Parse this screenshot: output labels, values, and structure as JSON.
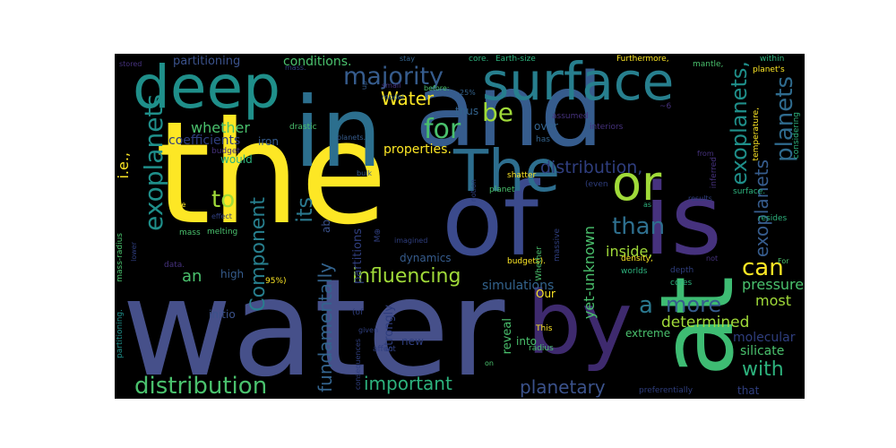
{
  "palette": {
    "background": "#000000",
    "yellow": "#fde725",
    "lime": "#a0da39",
    "green": "#4ac16d",
    "teal_green": "#1fa187",
    "teal": "#277f8e",
    "blue": "#365c8d",
    "indigo": "#46327e",
    "purple": "#440154"
  },
  "words": {
    "the": "the",
    "water": "water",
    "and": "and",
    "of": "of",
    "in": "in",
    "is": "is",
    "at": "at",
    "by": "by",
    "deep": "deep",
    "surface": "surface",
    "The": "The",
    "or": "or",
    "majority": "majority",
    "exoplanets": "exoplanets",
    "exoplanets_comma": "exoplanets,",
    "exoplanets_2": "exoplanets",
    "planets": "planets",
    "for": "for",
    "be": "be",
    "Water": "Water",
    "distribution": "distribution",
    "distribution_comma": "distribution,",
    "than": "than",
    "can": "can",
    "more": "more",
    "a": "a",
    "to": "to",
    "its": "its",
    "Component": "Component",
    "fundamentally": "fundamentally",
    "influencing": "influencing",
    "important": "important",
    "planetary": "planetary",
    "with": "with",
    "determined": "determined",
    "most": "most",
    "pressures": "pressures",
    "inside": "inside,",
    "whether": "whether",
    "conditions": "conditions.",
    "partitioning": "partitioning",
    "coefficients": "coefficients",
    "properties": "properties.",
    "an": "an",
    "ie": "i.e.,",
    "yet_unknown": "yet-unknown",
    "simulations": "simulations",
    "molecular": "molecular",
    "silicate": "silicate",
    "extreme": "extreme",
    "dynamics": "dynamics",
    "partitions": "partitions",
    "strongly": "strongly",
    "reveal": "reveal",
    "into": "into",
    "new": "new",
    "Our": "Our",
    "initio": "initio",
    "high": "high",
    "would": "would",
    "iron": "iron",
    "thus": "thus",
    "over": "over",
    "ab": "ab",
    "Earth_size": "Earth-size",
    "Furthermore": "Furthermore,",
    "within": "within",
    "mantle": "mantle,",
    "planets_poss": "planet's",
    "core": "core.",
    "mass": "mass.",
    "stay": "stay",
    "stored": "stored",
    "small": "small",
    "up": "up",
    "before": "before:",
    "pct25": "25%",
    "drastic": "drastic",
    "budget": "budget",
    "planets_dot": "planets.",
    "model": "model",
    "has": "has",
    "assumed": "assumed",
    "interiors": "interiors",
    "neg6": "~6",
    "temperature": "temperature,",
    "considering": "considering",
    "from": "from",
    "inferred": "inferred",
    "surface_dot": "surface.",
    "results": "results",
    "as": "as",
    "resides": "resides",
    "even": "(even",
    "shatter": "shatter",
    "bulk": "bulk",
    "notion": "notion",
    "planet": "planet",
    "we": "we",
    "effect": "effect",
    "melting": "melting",
    "mass_plain": "mass",
    "MQ": "M⊕",
    "imagined": "imagined",
    "budgets": "budgets).",
    "Whether": "Whether",
    "massive": "massive",
    "lower": "lower",
    "data": "data.",
    "mass_radius": "mass-radius",
    "pct95": "95%)",
    "depth": "depth",
    "not": "not",
    "density": "density,",
    "worlds": "worlds",
    "cores": "cores",
    "For": "For",
    "of_paren": "(of",
    "given": "given",
    "This": "This",
    "consequences": "consequences",
    "affect": "affect",
    "radius": "radius",
    "on": "on",
    "partitioning_dot": "partitioning.",
    "preferentially": "preferentially",
    "that": "that"
  }
}
